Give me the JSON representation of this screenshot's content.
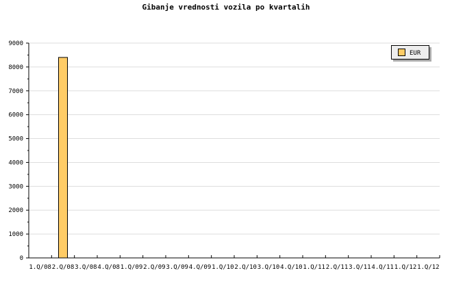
{
  "chart_data": {
    "type": "bar",
    "title": "Gibanje vrednosti vozila po kvartalih",
    "categories": [
      "1.Q/08",
      "2.Q/08",
      "3.Q/08",
      "4.Q/08",
      "1.Q/09",
      "2.Q/09",
      "3.Q/09",
      "4.Q/09",
      "1.Q/10",
      "2.Q/10",
      "3.Q/10",
      "4.Q/10",
      "1.Q/11",
      "2.Q/11",
      "3.Q/11",
      "4.Q/11",
      "1.Q/12",
      "1.Q/12"
    ],
    "series": [
      {
        "name": "EUR",
        "color": "#ffcc66",
        "values": [
          null,
          8400,
          null,
          null,
          null,
          null,
          null,
          null,
          null,
          null,
          null,
          null,
          null,
          null,
          null,
          null,
          null,
          null
        ]
      }
    ],
    "yticks": [
      0,
      1000,
      2000,
      3000,
      4000,
      5000,
      6000,
      7000,
      8000,
      9000
    ],
    "ylim": [
      0,
      9000
    ],
    "grid": true,
    "legend": "top-right"
  }
}
